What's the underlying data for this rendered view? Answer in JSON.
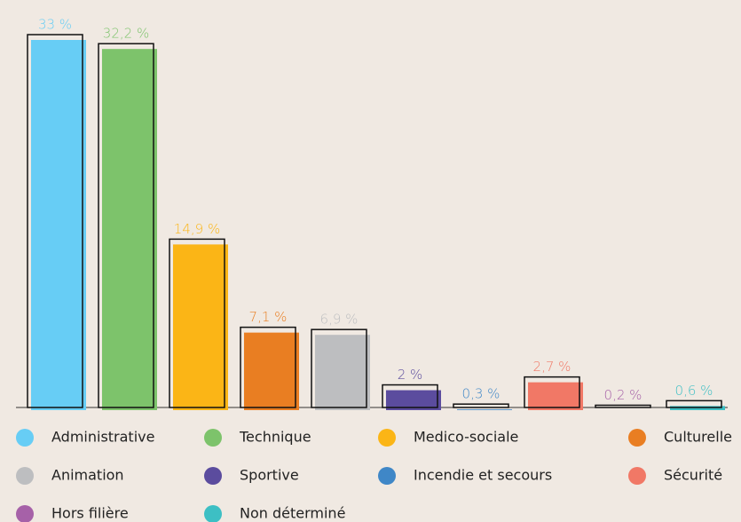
{
  "chart_data": {
    "type": "bar",
    "categories": [
      "Administrative",
      "Technique",
      "Medico-sociale",
      "Culturelle",
      "Animation",
      "Sportive",
      "Incendie et secours",
      "Sécurité",
      "Hors filière",
      "Non déterminé"
    ],
    "values": [
      33,
      32.2,
      14.9,
      7.1,
      6.9,
      2,
      0.3,
      2.7,
      0.2,
      0.6
    ],
    "value_labels": [
      "33 %",
      "32,2 %",
      "14,9 %",
      "7,1 %",
      "6,9 %",
      "2 %",
      "0,3 %",
      "2,7 %",
      "0,2 %",
      "0,6 %"
    ],
    "colors": [
      "#67cdf5",
      "#7dc36b",
      "#fbb516",
      "#e97e22",
      "#bdbec0",
      "#5b4c9e",
      "#3f87c7",
      "#f17866",
      "#a661a8",
      "#3dbfc4"
    ]
  }
}
